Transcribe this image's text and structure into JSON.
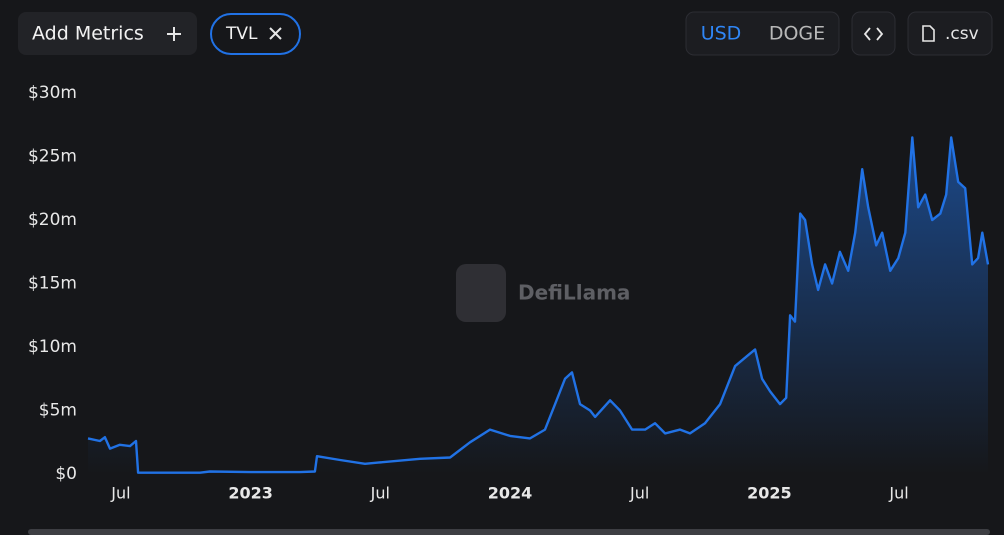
{
  "toolbar": {
    "add_metrics": "Add Metrics",
    "metric": "TVL",
    "currencies": [
      "USD",
      "DOGE"
    ],
    "csv": ".csv"
  },
  "chart_data": {
    "type": "line",
    "watermark": "DefiLlama",
    "color": "#2172e5",
    "x": [
      2022.373,
      2022.419,
      2022.438,
      2022.458,
      2022.496,
      2022.535,
      2022.558,
      2022.566,
      2022.805,
      2022.843,
      2023.0,
      2023.19,
      2023.248,
      2023.256,
      2023.345,
      2023.441,
      2023.491,
      2023.653,
      2023.769,
      2023.846,
      2023.923,
      2024.0,
      2024.077,
      2024.135,
      2024.174,
      2024.212,
      2024.239,
      2024.27,
      2024.309,
      2024.328,
      2024.386,
      2024.424,
      2024.471,
      2024.521,
      2024.559,
      2024.598,
      2024.656,
      2024.694,
      2024.752,
      2024.81,
      2024.868,
      2024.926,
      2024.945,
      2024.972,
      2025.003,
      2025.041,
      2025.065,
      2025.08,
      2025.099,
      2025.119,
      2025.138,
      2025.165,
      2025.188,
      2025.215,
      2025.242,
      2025.272,
      2025.304,
      2025.331,
      2025.358,
      2025.381,
      2025.412,
      2025.435,
      2025.466,
      2025.497,
      2025.524,
      2025.551,
      2025.574,
      2025.601,
      2025.628,
      2025.659,
      2025.682,
      2025.701,
      2025.728,
      2025.755,
      2025.782,
      2025.805,
      2025.821,
      2025.843
    ],
    "values": [
      2.8,
      2.6,
      2.9,
      2.0,
      2.3,
      2.2,
      2.6,
      0.1,
      0.1,
      0.2,
      0.15,
      0.15,
      0.2,
      1.4,
      1.1,
      0.8,
      0.9,
      1.2,
      1.3,
      2.5,
      3.5,
      3.0,
      2.8,
      3.5,
      5.5,
      7.5,
      8.0,
      5.5,
      5.0,
      4.5,
      5.8,
      5.0,
      3.5,
      3.5,
      4.0,
      3.2,
      3.5,
      3.2,
      4.0,
      5.5,
      8.5,
      9.5,
      9.8,
      7.5,
      6.5,
      5.5,
      6.0,
      12.5,
      12.0,
      20.5,
      20.0,
      16.5,
      14.5,
      16.5,
      15.0,
      17.5,
      16.0,
      19.0,
      24.0,
      21.0,
      18.0,
      19.0,
      16.0,
      17.0,
      19.0,
      26.5,
      21.0,
      22.0,
      20.0,
      20.5,
      22.0,
      26.5,
      23.0,
      22.5,
      16.5,
      17.0,
      19.0,
      16.5
    ],
    "xlim": [
      2022.373,
      2025.843
    ],
    "xticks": [
      {
        "value": 2022.5,
        "label": "Jul"
      },
      2023,
      {
        "value": 2023.5,
        "label": "Jul"
      },
      2024,
      {
        "value": 2024.5,
        "label": "Jul"
      },
      2025,
      {
        "value": 2025.5,
        "label": "Jul"
      }
    ],
    "ylim": [
      0,
      30
    ],
    "yticks": [
      {
        "value": 0,
        "label": "$0"
      },
      {
        "value": 5,
        "label": "$5m"
      },
      {
        "value": 10,
        "label": "$10m"
      },
      {
        "value": 15,
        "label": "$15m"
      },
      {
        "value": 20,
        "label": "$20m"
      },
      {
        "value": 25,
        "label": "$25m"
      },
      {
        "value": 30,
        "label": "$30m"
      }
    ]
  }
}
